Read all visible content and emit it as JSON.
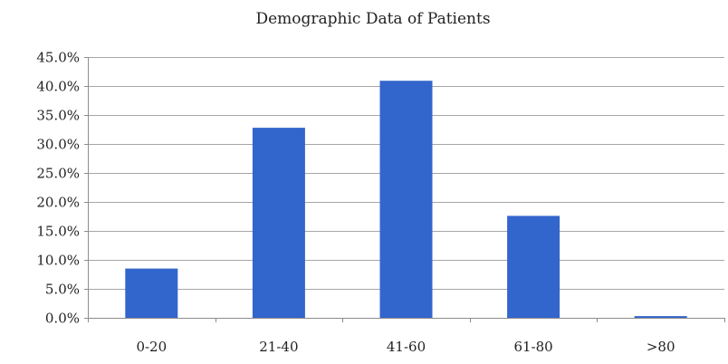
{
  "chart_data": {
    "type": "bar",
    "title": "Demographic Data of Patients",
    "xlabel": "",
    "ylabel": "",
    "categories": [
      "0-20",
      "21-40",
      "41-60",
      "61-80",
      ">80"
    ],
    "values": [
      8.5,
      32.8,
      40.9,
      17.6,
      0.3
    ],
    "value_format": "percent",
    "ylim": [
      0,
      45
    ],
    "yticks": [
      0,
      5,
      10,
      15,
      20,
      25,
      30,
      35,
      40,
      45
    ],
    "ytick_labels": [
      "0.0%",
      "5.0%",
      "10.0%",
      "15.0%",
      "20.0%",
      "25.0%",
      "30.0%",
      "35.0%",
      "40.0%",
      "45.0%"
    ],
    "grid": true,
    "legend": "none",
    "colors": {
      "bar": "#3366CC",
      "grid": "#A6A6A6",
      "axis": "#8C8C8C",
      "text": "#222222"
    }
  }
}
